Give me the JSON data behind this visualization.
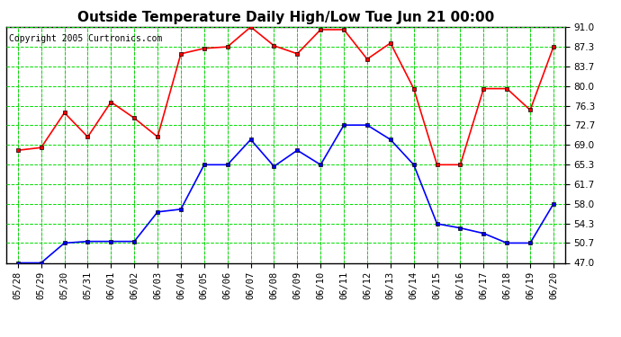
{
  "title": "Outside Temperature Daily High/Low Tue Jun 21 00:00",
  "copyright": "Copyright 2005 Curtronics.com",
  "x_labels": [
    "05/28",
    "05/29",
    "05/30",
    "05/31",
    "06/01",
    "06/02",
    "06/03",
    "06/04",
    "06/05",
    "06/06",
    "06/07",
    "06/08",
    "06/09",
    "06/10",
    "06/11",
    "06/12",
    "06/13",
    "06/14",
    "06/15",
    "06/16",
    "06/17",
    "06/18",
    "06/19",
    "06/20"
  ],
  "high_values": [
    68.0,
    68.5,
    75.0,
    70.5,
    77.0,
    74.0,
    70.5,
    86.0,
    87.0,
    87.3,
    91.0,
    87.5,
    86.0,
    90.5,
    90.5,
    85.0,
    88.0,
    79.5,
    65.3,
    65.3,
    79.5,
    79.5,
    75.5,
    87.3
  ],
  "low_values": [
    47.0,
    47.0,
    50.7,
    51.0,
    51.0,
    51.0,
    56.5,
    57.0,
    65.3,
    65.3,
    70.0,
    65.0,
    68.0,
    65.3,
    72.7,
    72.7,
    70.0,
    65.3,
    54.3,
    53.5,
    52.5,
    50.7,
    50.7,
    58.0
  ],
  "ylim": [
    47.0,
    91.0
  ],
  "yticks": [
    47.0,
    50.7,
    54.3,
    58.0,
    61.7,
    65.3,
    69.0,
    72.7,
    76.3,
    80.0,
    83.7,
    87.3,
    91.0
  ],
  "high_color": "#ff0000",
  "low_color": "#0000ff",
  "marker": "s",
  "marker_size": 3,
  "marker_edge_color": "#000000",
  "grid_color": "#00dd00",
  "bg_color": "#ffffff",
  "title_fontsize": 11,
  "copyright_fontsize": 7,
  "tick_fontsize": 7.5,
  "line_width": 1.2
}
